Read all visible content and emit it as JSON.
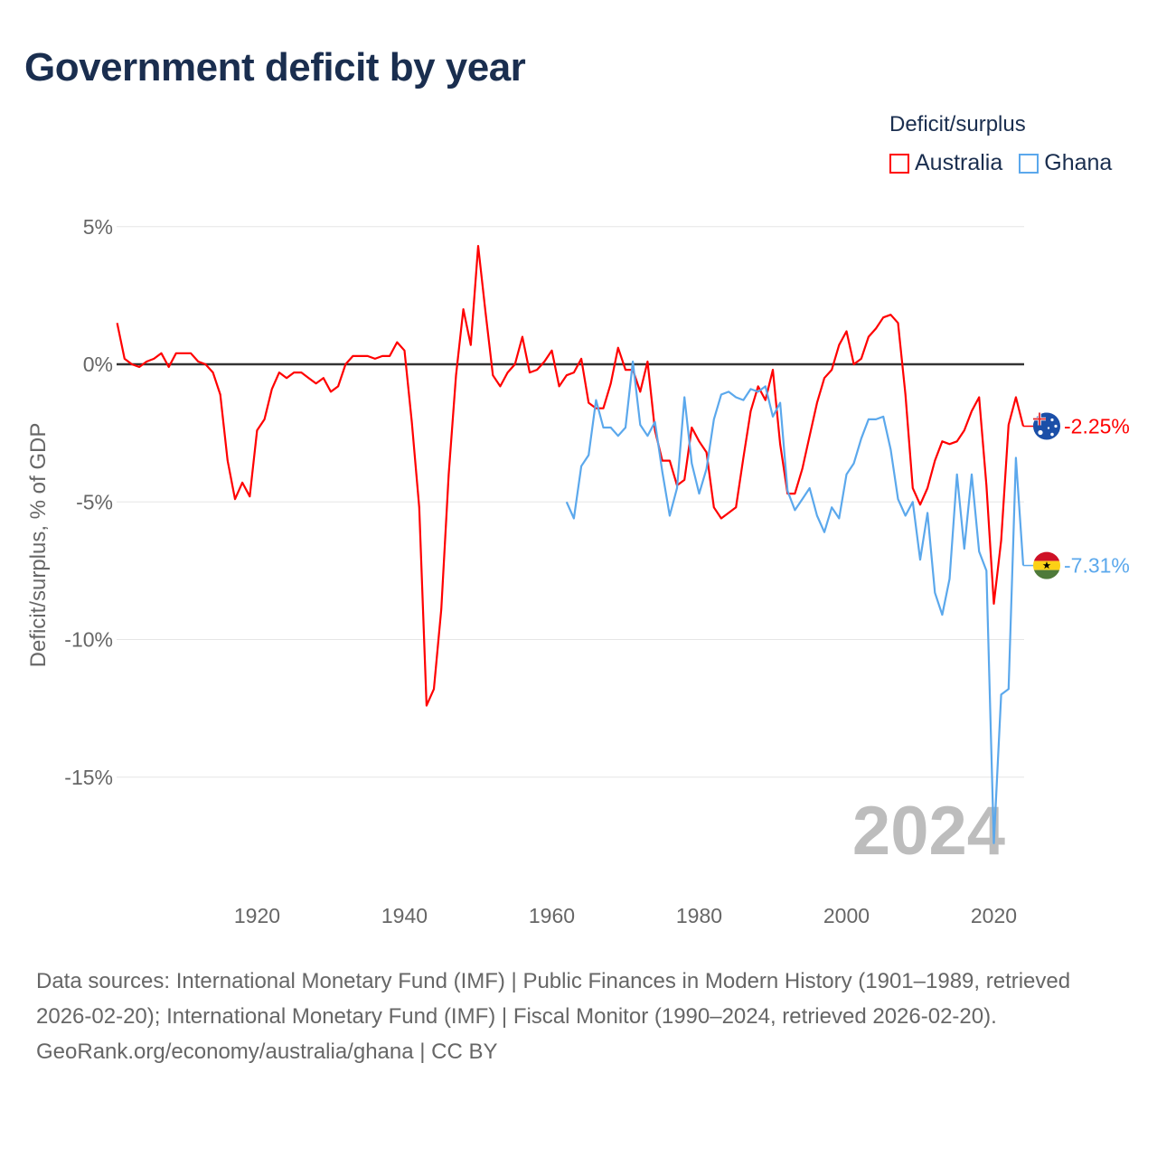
{
  "title": "Government deficit by year",
  "legend": {
    "title": "Deficit/surplus",
    "items": [
      {
        "label": "Australia",
        "color": "#ff0000"
      },
      {
        "label": "Ghana",
        "color": "#5ba8ec"
      }
    ]
  },
  "watermark_year": "2024",
  "footer": {
    "sources": "Data sources: International Monetary Fund (IMF) | Public Finances in Modern History (1901–1989, retrieved 2026-02-20); International Monetary Fund (IMF) | Fiscal Monitor (1990–2024, retrieved 2026-02-20).",
    "credit": "GeoRank.org/economy/australia/ghana | CC BY"
  },
  "chart_data": {
    "type": "line",
    "title": "Government deficit by year",
    "xlabel": "",
    "ylabel": "Deficit/surplus, % of GDP",
    "xlim": [
      1901,
      2024
    ],
    "ylim": [
      -18,
      6
    ],
    "x_ticks": [
      1920,
      1940,
      1960,
      1980,
      2000,
      2020
    ],
    "x_tick_labels": [
      "1920",
      "1940",
      "1960",
      "1980",
      "2000",
      "2020"
    ],
    "y_ticks": [
      5,
      0,
      -5,
      -10,
      -15
    ],
    "y_tick_labels": [
      "5%",
      "0%",
      "-5%",
      "-10%",
      "-15%"
    ],
    "grid": true,
    "legend_position": "top-right",
    "series": [
      {
        "name": "Australia",
        "color": "#ff0000",
        "end_label": "-2.25%",
        "flag": "australia-flag",
        "start_year": 1901,
        "values": [
          1.5,
          0.2,
          0.0,
          -0.1,
          0.1,
          0.2,
          0.4,
          -0.1,
          0.4,
          0.4,
          0.4,
          0.1,
          0.0,
          -0.3,
          -1.1,
          -3.5,
          -4.9,
          -4.3,
          -4.8,
          -2.4,
          -2.0,
          -0.9,
          -0.3,
          -0.5,
          -0.3,
          -0.3,
          -0.5,
          -0.7,
          -0.5,
          -1.0,
          -0.8,
          0.0,
          0.3,
          0.3,
          0.3,
          0.2,
          0.3,
          0.3,
          0.8,
          0.5,
          -2.1,
          -5.2,
          -12.4,
          -11.8,
          -8.9,
          -4.0,
          -0.4,
          2.0,
          0.7,
          4.3,
          1.9,
          -0.4,
          -0.8,
          -0.3,
          0.0,
          1.0,
          -0.3,
          -0.2,
          0.1,
          0.5,
          -0.8,
          -0.4,
          -0.3,
          0.2,
          -1.4,
          -1.6,
          -1.6,
          -0.7,
          0.6,
          -0.2,
          -0.2,
          -1.0,
          0.1,
          -2.4,
          -3.5,
          -3.5,
          -4.4,
          -4.2,
          -2.3,
          -2.8,
          -3.2,
          -5.2,
          -5.6,
          -5.4,
          -5.2,
          -3.4,
          -1.7,
          -0.8,
          -1.3,
          -0.2,
          -2.9,
          -4.7,
          -4.7,
          -3.8,
          -2.6,
          -1.4,
          -0.5,
          -0.2,
          0.7,
          1.2,
          0.0,
          0.2,
          1.0,
          1.3,
          1.7,
          1.8,
          1.5,
          -1.1,
          -4.5,
          -5.1,
          -4.5,
          -3.5,
          -2.8,
          -2.9,
          -2.8,
          -2.4,
          -1.7,
          -1.2,
          -4.4,
          -8.7,
          -6.4,
          -2.2,
          -1.2,
          -2.25
        ]
      },
      {
        "name": "Ghana",
        "color": "#5ba8ec",
        "end_label": "-7.31%",
        "flag": "ghana-flag",
        "start_year": 1962,
        "values": [
          -5.0,
          -5.6,
          -3.7,
          -3.3,
          -1.3,
          -2.3,
          -2.3,
          -2.6,
          -2.3,
          0.1,
          -2.2,
          -2.6,
          -2.1,
          -3.9,
          -5.5,
          -4.5,
          -1.2,
          -3.6,
          -4.7,
          -3.8,
          -2.0,
          -1.1,
          -1.0,
          -1.2,
          -1.3,
          -0.9,
          -1.0,
          -0.8,
          -1.9,
          -1.4,
          -4.6,
          -5.3,
          -4.9,
          -4.5,
          -5.5,
          -6.1,
          -5.2,
          -5.6,
          -4.0,
          -3.6,
          -2.7,
          -2.0,
          -2.0,
          -1.9,
          -3.1,
          -4.9,
          -5.5,
          -5.0,
          -7.1,
          -5.4,
          -8.3,
          -9.1,
          -7.8,
          -4.0,
          -6.7,
          -4.0,
          -6.8,
          -7.5,
          -17.4,
          -12.0,
          -11.8,
          -3.4,
          -7.31
        ]
      }
    ]
  }
}
